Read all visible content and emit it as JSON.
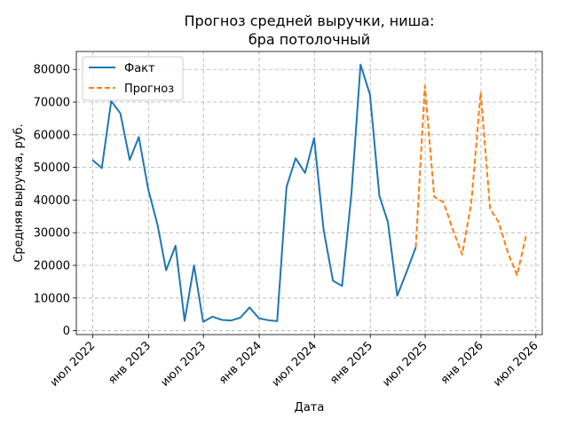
{
  "chart_data": {
    "type": "line",
    "title_line1": "Прогноз средней выручки, ниша:",
    "title_line2": "бра потолочный",
    "xlabel": "Дата",
    "ylabel": "Средняя выручка, руб.",
    "ylim": [
      -1200,
      85500
    ],
    "yticks": [
      0,
      10000,
      20000,
      30000,
      40000,
      50000,
      60000,
      70000,
      80000
    ],
    "xlim": [
      "2022-05-08",
      "2026-07-22"
    ],
    "xticks": [
      {
        "date": "2022-07-01",
        "label": "июл 2022"
      },
      {
        "date": "2023-01-01",
        "label": "янв 2023"
      },
      {
        "date": "2023-07-01",
        "label": "июл 2023"
      },
      {
        "date": "2024-01-01",
        "label": "янв 2024"
      },
      {
        "date": "2024-07-01",
        "label": "июл 2024"
      },
      {
        "date": "2025-01-01",
        "label": "янв 2025"
      },
      {
        "date": "2025-07-01",
        "label": "июл 2025"
      },
      {
        "date": "2026-01-01",
        "label": "янв 2026"
      },
      {
        "date": "2026-07-01",
        "label": "июл 2026"
      }
    ],
    "grid": true,
    "legend_position": "top-left",
    "series": [
      {
        "name": "Факт",
        "color": "#1f77b4",
        "style": "solid",
        "x": [
          "2022-06-30",
          "2022-07-31",
          "2022-08-31",
          "2022-09-30",
          "2022-10-31",
          "2022-11-30",
          "2022-12-31",
          "2023-01-31",
          "2023-02-28",
          "2023-03-31",
          "2023-04-30",
          "2023-05-31",
          "2023-06-30",
          "2023-07-31",
          "2023-08-31",
          "2023-09-30",
          "2023-10-31",
          "2023-11-30",
          "2023-12-31",
          "2024-01-31",
          "2024-02-29",
          "2024-03-31",
          "2024-04-30",
          "2024-05-31",
          "2024-06-30",
          "2024-07-31",
          "2024-08-31",
          "2024-09-30",
          "2024-10-31",
          "2024-11-30",
          "2024-12-31",
          "2025-01-31",
          "2025-02-28",
          "2025-03-31",
          "2025-04-30",
          "2025-05-31"
        ],
        "y": [
          52300,
          49800,
          70300,
          66600,
          52300,
          59300,
          43300,
          32300,
          18500,
          26000,
          3000,
          20000,
          2700,
          4300,
          3300,
          3100,
          4000,
          7100,
          3800,
          3200,
          2900,
          44000,
          52800,
          48300,
          59000,
          31000,
          15300,
          13700,
          42000,
          81500,
          72300,
          41300,
          33300,
          10700,
          17800,
          25500
        ]
      },
      {
        "name": "Прогноз",
        "color": "#ff7f0e",
        "style": "dashed",
        "x": [
          "2025-05-31",
          "2025-06-30",
          "2025-07-31",
          "2025-08-31",
          "2025-09-30",
          "2025-10-31",
          "2025-11-30",
          "2025-12-31",
          "2026-01-31",
          "2026-02-28",
          "2026-03-31",
          "2026-04-30",
          "2026-05-31"
        ],
        "y": [
          25500,
          75000,
          41000,
          39300,
          31000,
          23300,
          39000,
          73000,
          37300,
          33300,
          23800,
          17000,
          29700
        ]
      }
    ]
  }
}
